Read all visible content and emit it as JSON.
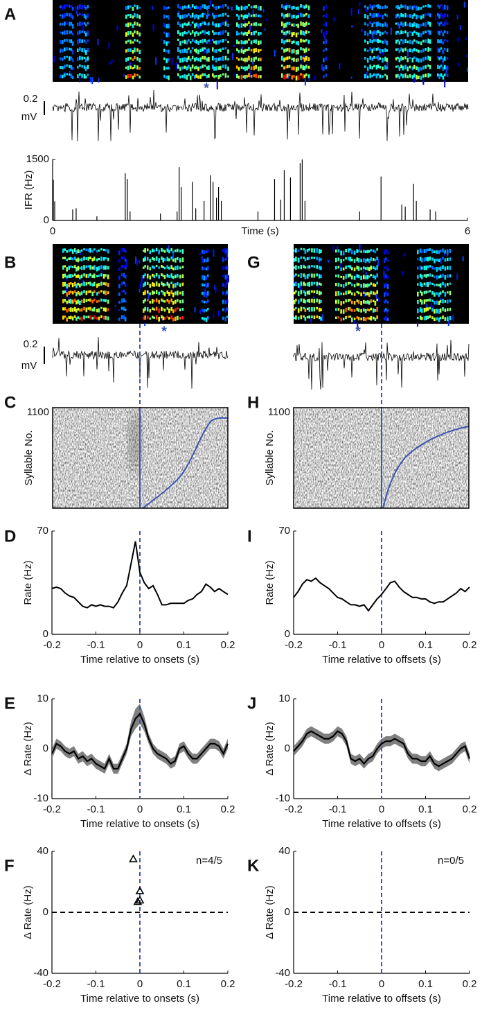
{
  "chart_data": [
    {
      "type": "spikes",
      "panel": "A",
      "scale_value": "0.2",
      "scale_unit": "mV",
      "annotation": "*",
      "ylabel": "IFR (Hz)",
      "xlabel": "Time (s)",
      "xlim": [
        0,
        6
      ],
      "xticks": [
        0,
        6
      ],
      "ylim": [
        0,
        1500
      ],
      "yticks": [
        0,
        1500
      ],
      "color": "#000000",
      "x": [
        0.01,
        0.03,
        0.29,
        0.34,
        0.64,
        1.05,
        1.08,
        1.12,
        1.56,
        1.8,
        1.83,
        1.86,
        2.02,
        2.07,
        2.19,
        2.28,
        2.32,
        2.37,
        2.4,
        2.44,
        2.97,
        3.21,
        3.3,
        3.35,
        3.44,
        3.58,
        3.61,
        3.65,
        4.44,
        4.75,
        5.05,
        5.1,
        5.22,
        5.26,
        5.46,
        5.54
      ],
      "values": [
        1000,
        470,
        270,
        300,
        100,
        1160,
        1020,
        220,
        170,
        220,
        1310,
        820,
        950,
        300,
        480,
        1110,
        950,
        560,
        820,
        480,
        220,
        1020,
        510,
        1240,
        1060,
        1410,
        1500,
        480,
        220,
        1080,
        390,
        340,
        900,
        480,
        270,
        220
      ]
    },
    {
      "type": "spectrogram",
      "panel": "B",
      "scale_value": "0.2",
      "scale_unit": "mV",
      "annotation": "*"
    },
    {
      "type": "spectrogram",
      "panel": "G",
      "annotation": "*"
    },
    {
      "type": "raster",
      "panel": "C",
      "ylabel": "Syllable No.",
      "ylim": [
        0,
        1100
      ],
      "yticks": [
        1100
      ]
    },
    {
      "type": "raster",
      "panel": "H",
      "ylabel": "Syllable No.",
      "ylim": [
        0,
        1100
      ],
      "yticks": [
        1100
      ]
    },
    {
      "type": "line",
      "panel": "D",
      "ylabel": "Rate (Hz)",
      "xlabel": "Time relative to onsets (s)",
      "xlim": [
        -0.2,
        0.2
      ],
      "xticks": [
        -0.2,
        -0.1,
        0,
        0.1,
        0.2
      ],
      "ylim": [
        0,
        70
      ],
      "yticks": [
        0,
        70
      ],
      "ref_x": 0,
      "ref_color": "#3b57b0",
      "color": "#000000",
      "x": [
        -0.2,
        -0.19,
        -0.18,
        -0.17,
        -0.16,
        -0.15,
        -0.14,
        -0.13,
        -0.12,
        -0.11,
        -0.1,
        -0.09,
        -0.08,
        -0.07,
        -0.06,
        -0.05,
        -0.04,
        -0.03,
        -0.02,
        -0.01,
        0,
        0.01,
        0.02,
        0.03,
        0.04,
        0.05,
        0.06,
        0.07,
        0.08,
        0.09,
        0.1,
        0.11,
        0.12,
        0.13,
        0.14,
        0.15,
        0.16,
        0.17,
        0.18,
        0.19,
        0.2
      ],
      "values": [
        31,
        32,
        31,
        28,
        26,
        25,
        22,
        19,
        18,
        20,
        19,
        20,
        19,
        19,
        18,
        22,
        28,
        33,
        48,
        63,
        42,
        35,
        31,
        33,
        27,
        20,
        20,
        21,
        21,
        21,
        21,
        23,
        24,
        27,
        29,
        34,
        32,
        29,
        31,
        29,
        27
      ]
    },
    {
      "type": "line",
      "panel": "I",
      "ylabel": "Rate (Hz)",
      "xlabel": "Time relative to offsets (s)",
      "xlim": [
        -0.2,
        0.2
      ],
      "xticks": [
        -0.2,
        -0.1,
        0,
        0.1,
        0.2
      ],
      "ylim": [
        0,
        70
      ],
      "yticks": [
        0,
        70
      ],
      "ref_x": 0,
      "ref_color": "#3b57b0",
      "color": "#000000",
      "x": [
        -0.2,
        -0.19,
        -0.18,
        -0.17,
        -0.16,
        -0.15,
        -0.14,
        -0.13,
        -0.12,
        -0.11,
        -0.1,
        -0.09,
        -0.08,
        -0.07,
        -0.06,
        -0.05,
        -0.04,
        -0.03,
        -0.02,
        -0.01,
        0,
        0.01,
        0.02,
        0.03,
        0.04,
        0.05,
        0.06,
        0.07,
        0.08,
        0.09,
        0.1,
        0.11,
        0.12,
        0.13,
        0.14,
        0.15,
        0.16,
        0.17,
        0.18,
        0.19,
        0.2
      ],
      "values": [
        25,
        29,
        34,
        37,
        36,
        38,
        35,
        33,
        31,
        28,
        25,
        24,
        22,
        20,
        20,
        19,
        20,
        16,
        20,
        24,
        27,
        31,
        35,
        36,
        32,
        29,
        27,
        25,
        25,
        24,
        24,
        22,
        21,
        22,
        22,
        24,
        26,
        28,
        31,
        29,
        32
      ]
    },
    {
      "type": "band",
      "panel": "E",
      "ylabel": "Δ Rate (Hz)",
      "xlabel": "Time relative to onsets (s)",
      "xlim": [
        -0.2,
        0.2
      ],
      "xticks": [
        -0.2,
        -0.1,
        0,
        0.1,
        0.2
      ],
      "ylim": [
        -10,
        10
      ],
      "yticks": [
        -10,
        0,
        10
      ],
      "ref_x": 0,
      "ref_color": "#3b57b0",
      "color": "#000000",
      "band_color": "#808080",
      "x": [
        -0.2,
        -0.19,
        -0.18,
        -0.17,
        -0.16,
        -0.15,
        -0.14,
        -0.13,
        -0.12,
        -0.11,
        -0.1,
        -0.09,
        -0.08,
        -0.07,
        -0.06,
        -0.05,
        -0.04,
        -0.03,
        -0.02,
        -0.01,
        0,
        0.01,
        0.02,
        0.03,
        0.04,
        0.05,
        0.06,
        0.07,
        0.08,
        0.09,
        0.1,
        0.11,
        0.12,
        0.13,
        0.14,
        0.15,
        0.16,
        0.17,
        0.18,
        0.19,
        0.2
      ],
      "values": [
        -1,
        1,
        0.5,
        -0.5,
        -1,
        -0.5,
        -2,
        -1.5,
        -2.5,
        -2,
        -3,
        -3.5,
        -4,
        -2,
        -4,
        -4,
        -2,
        0,
        4,
        6,
        7,
        5,
        2,
        0,
        -1,
        -1.5,
        -2,
        -3,
        -2.5,
        0,
        0.5,
        -1,
        -2,
        -2,
        -1,
        0,
        1,
        1,
        0.5,
        -1,
        1
      ],
      "errors": [
        1,
        1,
        1,
        1,
        1,
        1,
        1,
        1,
        1,
        1,
        1,
        1,
        1,
        1,
        1,
        1,
        1,
        1,
        1.5,
        2,
        2,
        1.5,
        1,
        1,
        1,
        1,
        1,
        1,
        1,
        1,
        1,
        1,
        1,
        1,
        1,
        1,
        1,
        1,
        1,
        1,
        1
      ]
    },
    {
      "type": "band",
      "panel": "J",
      "ylabel": "Δ Rate (Hz)",
      "xlabel": "Time relative to offsets (s)",
      "xlim": [
        -0.2,
        0.2
      ],
      "xticks": [
        -0.2,
        -0.1,
        0,
        0.1,
        0.2
      ],
      "ylim": [
        -10,
        10
      ],
      "yticks": [
        -10,
        0,
        10
      ],
      "ref_x": 0,
      "ref_color": "#3b57b0",
      "color": "#000000",
      "band_color": "#808080",
      "x": [
        -0.2,
        -0.19,
        -0.18,
        -0.17,
        -0.16,
        -0.15,
        -0.14,
        -0.13,
        -0.12,
        -0.11,
        -0.1,
        -0.09,
        -0.08,
        -0.07,
        -0.06,
        -0.05,
        -0.04,
        -0.03,
        -0.02,
        -0.01,
        0,
        0.01,
        0.02,
        0.03,
        0.04,
        0.05,
        0.06,
        0.07,
        0.08,
        0.09,
        0.1,
        0.11,
        0.12,
        0.13,
        0.14,
        0.15,
        0.16,
        0.17,
        0.18,
        0.19,
        0.2
      ],
      "values": [
        -0.5,
        0.5,
        1.5,
        3,
        3.5,
        3,
        2.5,
        2,
        2,
        2.5,
        3.5,
        3,
        1.5,
        -2,
        -2.5,
        -2,
        -3,
        -2,
        -1.5,
        0,
        1,
        1.5,
        1.5,
        2,
        1.5,
        1,
        -1,
        -2,
        -2,
        -2.5,
        -2.5,
        -1.5,
        -3,
        -3.5,
        -3,
        -2.5,
        -2,
        -1,
        0,
        0.5,
        -2
      ],
      "errors": [
        1,
        1,
        1,
        1,
        1,
        1,
        1,
        1,
        1,
        1,
        1,
        1,
        1,
        1,
        1,
        1,
        1,
        1,
        1,
        1,
        1,
        1,
        1,
        1,
        1,
        1,
        1,
        1,
        1,
        1,
        1,
        1,
        1,
        1,
        1,
        1,
        1,
        1,
        1,
        1,
        1
      ]
    },
    {
      "type": "scatter",
      "panel": "F",
      "ylabel": "Δ Rate (Hz)",
      "xlabel": "Time relative to onsets (s)",
      "annotation": "n=4/5",
      "xlim": [
        -0.2,
        0.2
      ],
      "xticks": [
        -0.2,
        -0.1,
        0,
        0.1,
        0.2
      ],
      "ylim": [
        -40,
        40
      ],
      "yticks": [
        -40,
        0,
        40
      ],
      "ref_x": 0,
      "ref_y": 0,
      "ref_color": "#3b57b0",
      "color": "#000000",
      "x": [
        -0.015,
        -0.005,
        0,
        0
      ],
      "values": [
        35,
        7,
        14,
        8
      ]
    },
    {
      "type": "scatter",
      "panel": "K",
      "ylabel": "Δ Rate (Hz)",
      "xlabel": "Time relative to offsets (s)",
      "annotation": "n=0/5",
      "xlim": [
        -0.2,
        0.2
      ],
      "xticks": [
        -0.2,
        -0.1,
        0,
        0.1,
        0.2
      ],
      "ylim": [
        -40,
        40
      ],
      "yticks": [
        -40,
        0,
        40
      ],
      "ref_x": 0,
      "ref_y": 0,
      "ref_color": "#3b57b0",
      "color": "#000000"
    }
  ]
}
